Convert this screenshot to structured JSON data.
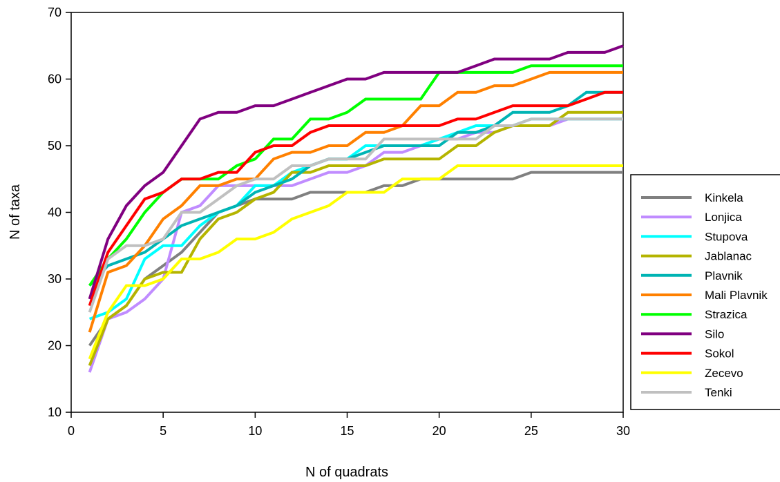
{
  "chart_data": {
    "type": "line",
    "title": "",
    "xlabel": "N of quadrats",
    "ylabel": "N of taxa",
    "xlim": [
      0,
      30
    ],
    "ylim": [
      10,
      70
    ],
    "xticks": [
      0,
      5,
      10,
      15,
      20,
      25,
      30
    ],
    "yticks": [
      10,
      20,
      30,
      40,
      50,
      60,
      70
    ],
    "grid": false,
    "legend_position": "right",
    "x": [
      1,
      2,
      3,
      4,
      5,
      6,
      7,
      8,
      9,
      10,
      11,
      12,
      13,
      14,
      15,
      16,
      17,
      18,
      19,
      20,
      21,
      22,
      23,
      24,
      25,
      26,
      27,
      28,
      29,
      30
    ],
    "series": [
      {
        "name": "Kinkela",
        "color": "#808080",
        "values": [
          20,
          24,
          26,
          30,
          32,
          34,
          37,
          40,
          41,
          42,
          42,
          42,
          43,
          43,
          43,
          43,
          44,
          44,
          45,
          45,
          45,
          45,
          45,
          45,
          46,
          46,
          46,
          46,
          46,
          46
        ]
      },
      {
        "name": "Lonjica",
        "color": "#C08CFF",
        "values": [
          16,
          24,
          25,
          27,
          30,
          40,
          41,
          44,
          44,
          44,
          44,
          44,
          45,
          46,
          46,
          47,
          49,
          49,
          50,
          51,
          51,
          52,
          52,
          53,
          53,
          53,
          54,
          54,
          54,
          54
        ]
      },
      {
        "name": "Stupova",
        "color": "#00FFFF",
        "values": [
          24,
          25,
          27,
          33,
          35,
          35,
          38,
          40,
          41,
          44,
          44,
          46,
          47,
          48,
          48,
          50,
          50,
          50,
          50,
          51,
          52,
          53,
          53,
          53,
          54,
          54,
          54,
          54,
          54,
          54
        ]
      },
      {
        "name": "Jablanac",
        "color": "#B4B400",
        "values": [
          17,
          24,
          26,
          30,
          31,
          31,
          36,
          39,
          40,
          42,
          43,
          46,
          46,
          47,
          47,
          47,
          48,
          48,
          48,
          48,
          50,
          50,
          52,
          53,
          53,
          53,
          55,
          55,
          55,
          55
        ]
      },
      {
        "name": "Plavnik",
        "color": "#00B4B4",
        "values": [
          29,
          32,
          33,
          34,
          36,
          38,
          39,
          40,
          41,
          43,
          44,
          45,
          47,
          48,
          48,
          49,
          50,
          50,
          50,
          50,
          52,
          52,
          53,
          55,
          55,
          55,
          56,
          58,
          58,
          58
        ]
      },
      {
        "name": "Mali Plavnik",
        "color": "#FF8000",
        "values": [
          22,
          31,
          32,
          35,
          39,
          41,
          44,
          44,
          45,
          45,
          48,
          49,
          49,
          50,
          50,
          52,
          52,
          53,
          56,
          56,
          58,
          58,
          59,
          59,
          60,
          61,
          61,
          61,
          61,
          61
        ]
      },
      {
        "name": "Strazica",
        "color": "#00FF00",
        "values": [
          29,
          33,
          36,
          40,
          43,
          45,
          45,
          45,
          47,
          48,
          51,
          51,
          54,
          54,
          55,
          57,
          57,
          57,
          57,
          61,
          61,
          61,
          61,
          61,
          62,
          62,
          62,
          62,
          62,
          62
        ]
      },
      {
        "name": "Silo",
        "color": "#800080",
        "values": [
          27,
          36,
          41,
          44,
          46,
          50,
          54,
          55,
          55,
          56,
          56,
          57,
          58,
          59,
          60,
          60,
          61,
          61,
          61,
          61,
          61,
          62,
          63,
          63,
          63,
          63,
          64,
          64,
          64,
          65
        ]
      },
      {
        "name": "Sokol",
        "color": "#FF0000",
        "values": [
          26,
          34,
          38,
          42,
          43,
          45,
          45,
          46,
          46,
          49,
          50,
          50,
          52,
          53,
          53,
          53,
          53,
          53,
          53,
          53,
          54,
          54,
          55,
          56,
          56,
          56,
          56,
          57,
          58,
          58
        ]
      },
      {
        "name": "Zecevo",
        "color": "#FFFF00",
        "values": [
          18,
          25,
          29,
          29,
          30,
          33,
          33,
          34,
          36,
          36,
          37,
          39,
          40,
          41,
          43,
          43,
          43,
          45,
          45,
          45,
          47,
          47,
          47,
          47,
          47,
          47,
          47,
          47,
          47,
          47
        ]
      },
      {
        "name": "Tenki",
        "color": "#C0C0C0",
        "values": [
          25,
          33,
          35,
          35,
          36,
          40,
          40,
          42,
          44,
          45,
          45,
          47,
          47,
          48,
          48,
          48,
          51,
          51,
          51,
          51,
          51,
          51,
          53,
          53,
          54,
          54,
          54,
          54,
          54,
          54
        ]
      }
    ]
  }
}
